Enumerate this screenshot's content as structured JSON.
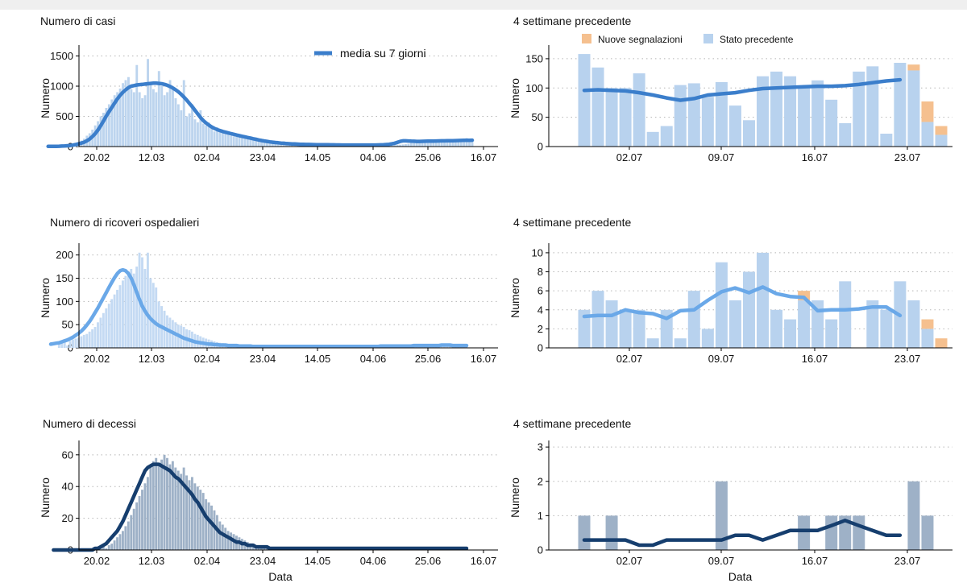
{
  "colors": {
    "cases_bar": "#bcd4ee",
    "cases_line": "#3b7ecb",
    "hosp_bar": "#c4daf3",
    "hosp_line": "#6aa8e8",
    "deaths_bar": "#9eb1c7",
    "deaths_line": "#163e6e",
    "new_reports": "#f5c08f",
    "previous_state": "#b8d2ee"
  },
  "chart_data": [
    {
      "id": "cases",
      "type": "bar",
      "title": "Numero di casi",
      "xlabel": "",
      "ylabel": "Numero",
      "legend": {
        "label": "media su 7 giorni",
        "placement": "top-center"
      },
      "x_ticks": [
        "20.02",
        "12.03",
        "02.04",
        "23.04",
        "14.05",
        "04.06",
        "25.06",
        "16.07"
      ],
      "y_ticks": [
        0,
        500,
        1000,
        1500
      ],
      "ylim": [
        0,
        1600
      ],
      "grid": "horizontal-dotted",
      "start_date": "24.02",
      "values": [
        2,
        2,
        3,
        5,
        6,
        8,
        10,
        12,
        18,
        20,
        30,
        45,
        60,
        70,
        100,
        130,
        180,
        220,
        280,
        350,
        420,
        500,
        560,
        640,
        700,
        780,
        850,
        900,
        960,
        1050,
        1100,
        1150,
        950,
        900,
        1350,
        900,
        800,
        850,
        1450,
        1050,
        950,
        900,
        1250,
        1000,
        850,
        900,
        1100,
        950,
        800,
        700,
        600,
        1100,
        500,
        550,
        700,
        450,
        400,
        600,
        380,
        350,
        400,
        300,
        250,
        320,
        280,
        230,
        220,
        200,
        180,
        170,
        160,
        150,
        140,
        130,
        120,
        110,
        100,
        95,
        90,
        85,
        80,
        75,
        70,
        65,
        60,
        55,
        50,
        48,
        45,
        42,
        40,
        38,
        36,
        35,
        34,
        33,
        32,
        31,
        30,
        30,
        30,
        29,
        29,
        28,
        28,
        27,
        27,
        27,
        26,
        26,
        25,
        25,
        25,
        25,
        25,
        25,
        25,
        25,
        25,
        26,
        26,
        26,
        27,
        27,
        28,
        28,
        29,
        29,
        30,
        30,
        35,
        40,
        45,
        60,
        80,
        100,
        110,
        100,
        95,
        90,
        90,
        90,
        95,
        95,
        100,
        100,
        100,
        105,
        110,
        110,
        115,
        120,
        130,
        140,
        120,
        80
      ],
      "series": [
        {
          "name": "media su 7 giorni",
          "values": [
            2,
            2,
            3,
            4,
            6,
            8,
            10,
            13,
            18,
            24,
            33,
            45,
            58,
            72,
            95,
            125,
            165,
            215,
            275,
            345,
            425,
            505,
            580,
            650,
            720,
            790,
            850,
            900,
            940,
            975,
            1000,
            1010,
            1020,
            1025,
            1030,
            1035,
            1040,
            1045,
            1050,
            1050,
            1045,
            1040,
            1030,
            1015,
            995,
            970,
            940,
            905,
            865,
            820,
            770,
            715,
            660,
            600,
            540,
            480,
            430,
            390,
            355,
            325,
            300,
            280,
            265,
            250,
            237,
            225,
            213,
            202,
            191,
            180,
            170,
            160,
            150,
            140,
            130,
            120,
            110,
            100,
            92,
            85,
            78,
            72,
            67,
            62,
            58,
            54,
            50,
            47,
            44,
            42,
            40,
            38,
            36,
            35,
            34,
            33,
            32,
            31,
            30,
            30,
            29,
            29,
            28,
            28,
            27,
            27,
            26,
            26,
            26,
            25,
            25,
            25,
            25,
            25,
            25,
            25,
            25,
            25,
            26,
            27,
            28,
            30,
            33,
            38,
            45,
            55,
            70,
            85,
            95,
            95,
            92,
            90,
            88,
            86,
            86,
            87,
            88,
            89,
            90,
            91,
            92,
            93,
            94,
            95,
            96,
            97,
            98,
            99,
            100,
            101,
            102,
            103,
            104,
            105
          ]
        }
      ]
    },
    {
      "id": "cases_recent",
      "type": "bar",
      "title": "4 settimane precedente",
      "xlabel": "",
      "ylabel": "Numero",
      "legend": {
        "entries": [
          "Nuove segnalazioni",
          "Stato precedente"
        ],
        "placement": "top"
      },
      "x_ticks": [
        "02.07",
        "09.07",
        "16.07",
        "23.07"
      ],
      "y_ticks": [
        0,
        50,
        100,
        150
      ],
      "ylim": [
        0,
        165
      ],
      "grid": "horizontal-dotted",
      "previous": [
        158,
        135,
        100,
        100,
        125,
        25,
        35,
        105,
        108,
        85,
        110,
        70,
        45,
        120,
        128,
        120,
        100,
        113,
        80,
        40,
        128,
        137,
        22,
        143,
        130,
        42,
        20
      ],
      "new": [
        0,
        0,
        0,
        0,
        0,
        0,
        0,
        0,
        0,
        0,
        0,
        0,
        0,
        0,
        0,
        0,
        0,
        0,
        0,
        0,
        0,
        0,
        0,
        0,
        10,
        35,
        15
      ],
      "series": [
        {
          "name": "media su 7 giorni",
          "values": [
            96,
            97,
            96,
            95,
            92,
            88,
            83,
            79,
            82,
            88,
            90,
            92,
            96,
            99,
            100,
            101,
            102,
            103,
            103,
            104,
            106,
            109,
            112,
            114
          ]
        }
      ]
    },
    {
      "id": "hosp",
      "type": "bar",
      "title": "Numero di ricoveri ospedalieri",
      "xlabel": "",
      "ylabel": "Numero",
      "x_ticks": [
        "20.02",
        "12.03",
        "02.04",
        "23.04",
        "14.05",
        "04.06",
        "25.06",
        "16.07"
      ],
      "y_ticks": [
        0,
        50,
        100,
        150,
        200
      ],
      "ylim": [
        0,
        215
      ],
      "grid": "horizontal-dotted",
      "start_date": "24.02",
      "values": [
        8,
        10,
        12,
        5,
        15,
        18,
        20,
        22,
        25,
        28,
        30,
        35,
        40,
        45,
        55,
        65,
        75,
        85,
        95,
        105,
        115,
        125,
        135,
        145,
        155,
        165,
        170,
        160,
        175,
        205,
        195,
        170,
        205,
        150,
        140,
        130,
        100,
        90,
        80,
        70,
        65,
        60,
        55,
        50,
        48,
        45,
        40,
        38,
        35,
        30,
        28,
        25,
        22,
        20,
        18,
        16,
        14,
        12,
        11,
        10,
        9,
        8,
        8,
        7,
        7,
        6,
        6,
        5,
        5,
        5,
        4,
        4,
        4,
        4,
        4,
        3,
        3,
        3,
        3,
        3,
        3,
        3,
        3,
        3,
        3,
        3,
        3,
        3,
        3,
        3,
        3,
        3,
        3,
        3,
        3,
        3,
        3,
        3,
        3,
        3,
        3,
        3,
        3,
        3,
        3,
        3,
        3,
        3,
        3,
        3,
        3,
        3,
        3,
        3,
        3,
        3,
        3,
        4,
        4,
        4,
        4,
        4,
        4,
        4,
        4,
        4,
        4,
        4,
        4,
        5,
        5,
        5,
        5,
        5,
        5,
        5,
        6,
        6,
        6,
        6,
        5,
        5,
        5,
        5,
        5,
        4,
        4,
        4
      ],
      "series": [
        {
          "name": "media su 7 giorni",
          "values": [
            8,
            9,
            10,
            11,
            13,
            15,
            17,
            20,
            23,
            27,
            31,
            36,
            42,
            49,
            57,
            66,
            76,
            86,
            97,
            108,
            119,
            130,
            141,
            151,
            160,
            166,
            168,
            166,
            160,
            150,
            136,
            120,
            104,
            90,
            79,
            70,
            63,
            57,
            52,
            48,
            45,
            42,
            39,
            36,
            33,
            30,
            27,
            24,
            21,
            19,
            17,
            15,
            13,
            12,
            11,
            10,
            9,
            8,
            8,
            7,
            7,
            6,
            6,
            6,
            5,
            5,
            5,
            5,
            4,
            4,
            4,
            4,
            4,
            3,
            3,
            3,
            3,
            3,
            3,
            3,
            3,
            3,
            3,
            3,
            3,
            3,
            3,
            3,
            3,
            3,
            3,
            3,
            3,
            3,
            3,
            3,
            3,
            3,
            3,
            3,
            3,
            3,
            3,
            3,
            3,
            3,
            3,
            3,
            3,
            3,
            3,
            3,
            3,
            3,
            3,
            3,
            3,
            3,
            3,
            4,
            4,
            4,
            4,
            4,
            4,
            4,
            4,
            4,
            4,
            4,
            4,
            5,
            5,
            5,
            5,
            5,
            5,
            5,
            5,
            5,
            5,
            6,
            6,
            6,
            6,
            5,
            5,
            5,
            5,
            5,
            5
          ]
        }
      ]
    },
    {
      "id": "hosp_recent",
      "type": "bar",
      "title": "4 settimane precedente",
      "xlabel": "",
      "ylabel": "Numero",
      "x_ticks": [
        "02.07",
        "09.07",
        "16.07",
        "23.07"
      ],
      "y_ticks": [
        0,
        2,
        4,
        6,
        8,
        10
      ],
      "ylim": [
        0,
        10.5
      ],
      "grid": "horizontal-dotted",
      "previous": [
        4,
        6,
        5,
        4,
        4,
        1,
        4,
        1,
        6,
        2,
        9,
        5,
        8,
        10,
        4,
        3,
        5,
        5,
        3,
        7,
        0,
        5,
        4,
        7,
        5,
        2,
        0
      ],
      "new": [
        0,
        0,
        0,
        0,
        0,
        0,
        0,
        0,
        0,
        0,
        0,
        0,
        0,
        0,
        0,
        0,
        1,
        0,
        0,
        0,
        0,
        0,
        0,
        0,
        0,
        1,
        1
      ],
      "series": [
        {
          "name": "media su 7 giorni",
          "values": [
            3.3,
            3.4,
            3.4,
            4.0,
            3.7,
            3.6,
            3.1,
            3.9,
            4.0,
            5.0,
            5.9,
            6.3,
            5.8,
            6.4,
            5.7,
            5.4,
            5.3,
            3.9,
            4.0,
            4.0,
            4.1,
            4.3,
            4.3,
            3.4
          ]
        }
      ]
    },
    {
      "id": "deaths",
      "type": "bar",
      "title": "Numero di decessi",
      "xlabel": "Data",
      "ylabel": "Numero",
      "x_ticks": [
        "20.02",
        "12.03",
        "02.04",
        "23.04",
        "14.05",
        "04.06",
        "25.06",
        "16.07"
      ],
      "y_ticks": [
        0,
        20,
        40,
        60
      ],
      "ylim": [
        0,
        66
      ],
      "grid": "horizontal-dotted",
      "start_date": "24.02",
      "values": [
        0,
        0,
        0,
        0,
        0,
        0,
        0,
        0,
        0,
        0,
        0,
        0,
        0,
        0,
        0,
        1,
        2,
        1,
        3,
        4,
        6,
        8,
        10,
        12,
        15,
        18,
        22,
        26,
        30,
        34,
        38,
        42,
        46,
        52,
        56,
        58,
        55,
        57,
        60,
        58,
        54,
        56,
        52,
        50,
        48,
        52,
        47,
        44,
        46,
        42,
        40,
        38,
        36,
        32,
        30,
        28,
        25,
        22,
        18,
        16,
        14,
        12,
        11,
        10,
        9,
        8,
        7,
        6,
        5,
        4,
        4,
        3,
        3,
        3,
        2,
        2,
        2,
        2,
        1,
        1,
        1,
        1,
        1,
        1,
        1,
        1,
        1,
        1,
        1,
        1,
        1,
        1,
        1,
        1,
        1,
        1,
        1,
        1,
        1,
        1,
        1,
        1,
        1,
        1,
        1,
        1,
        1,
        1,
        1,
        1,
        1,
        1,
        1,
        1,
        1,
        1,
        1,
        1,
        1,
        1,
        1,
        1,
        1,
        1,
        1,
        1,
        1,
        1,
        1,
        1,
        1,
        1,
        1,
        1,
        1,
        1,
        1,
        1,
        1,
        1,
        1,
        1,
        1,
        1,
        1,
        1,
        1,
        1
      ],
      "series": [
        {
          "name": "media su 7 giorni",
          "values": [
            0,
            0,
            0,
            0,
            0,
            0,
            0,
            0,
            0,
            0,
            0,
            0,
            0,
            0,
            0,
            1,
            1,
            2,
            3,
            4,
            6,
            8,
            10,
            12,
            15,
            18,
            22,
            26,
            30,
            34,
            38,
            42,
            46,
            50,
            52,
            53,
            54,
            54,
            54,
            53,
            52,
            51,
            50,
            48,
            46,
            45,
            43,
            41,
            39,
            37,
            35,
            32,
            30,
            27,
            24,
            21,
            19,
            17,
            15,
            13,
            11,
            10,
            9,
            8,
            7,
            6,
            5,
            5,
            4,
            4,
            3,
            3,
            3,
            2,
            2,
            2,
            2,
            2,
            1,
            1,
            1,
            1,
            1,
            1,
            1,
            1,
            1,
            1,
            1,
            1,
            1,
            1,
            1,
            1,
            1,
            1,
            1,
            1,
            1,
            1,
            1,
            1,
            1,
            1,
            1,
            1,
            1,
            1,
            1,
            1,
            1,
            1,
            1,
            1,
            1,
            1,
            1,
            1,
            1,
            1,
            1,
            1,
            1,
            1,
            1,
            1,
            1,
            1,
            1,
            1,
            1,
            1,
            1,
            1,
            1,
            1,
            1,
            1,
            1,
            1,
            1,
            1,
            1,
            1,
            1,
            1,
            1,
            1,
            1,
            1
          ]
        }
      ]
    },
    {
      "id": "deaths_recent",
      "type": "bar",
      "title": "4 settimane precedente",
      "xlabel": "Data",
      "ylabel": "Numero",
      "x_ticks": [
        "02.07",
        "09.07",
        "16.07",
        "23.07"
      ],
      "y_ticks": [
        0,
        1,
        2,
        3
      ],
      "ylim": [
        0,
        3.05
      ],
      "grid": "horizontal-dotted",
      "previous": [
        1,
        0,
        1,
        0,
        0,
        0,
        0,
        0,
        0,
        0,
        2,
        0,
        0,
        0,
        0,
        0,
        1,
        0,
        1,
        1,
        1,
        0,
        0,
        0,
        2,
        1,
        0
      ],
      "new": [
        0,
        0,
        0,
        0,
        0,
        0,
        0,
        0,
        0,
        0,
        0,
        0,
        0,
        0,
        0,
        0,
        0,
        0,
        0,
        0,
        0,
        0,
        0,
        0,
        0,
        0,
        0
      ],
      "series": [
        {
          "name": "media su 7 giorni",
          "values": [
            0.29,
            0.29,
            0.29,
            0.29,
            0.14,
            0.14,
            0.29,
            0.29,
            0.29,
            0.29,
            0.29,
            0.43,
            0.43,
            0.29,
            0.43,
            0.57,
            0.57,
            0.57,
            0.71,
            0.86,
            0.71,
            0.57,
            0.43,
            0.43
          ]
        }
      ]
    }
  ]
}
